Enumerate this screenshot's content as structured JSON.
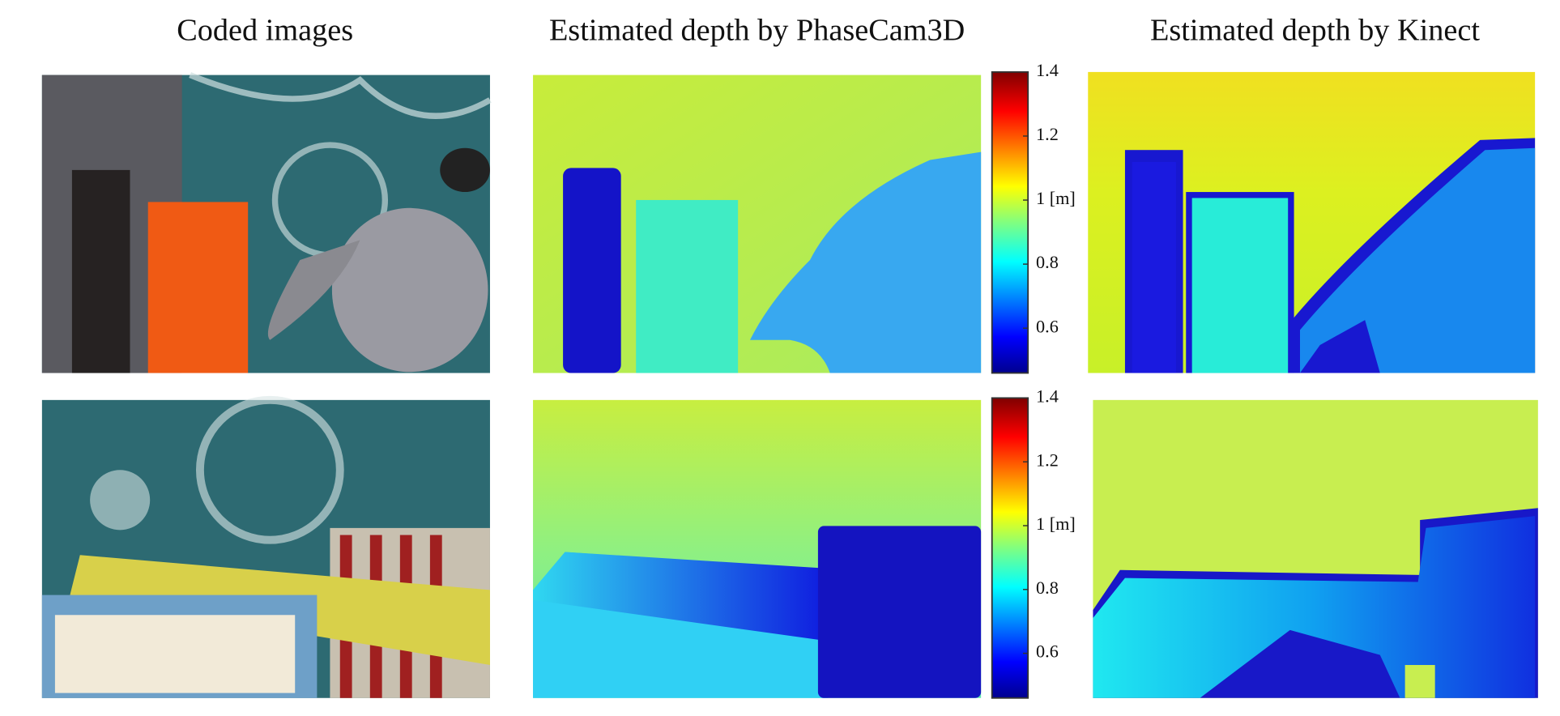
{
  "titles": [
    "Coded images",
    "Estimated depth by PhaseCam3D",
    "Estimated depth by Kinect"
  ],
  "colorbars": [
    {
      "ylim": [
        0.46,
        1.4
      ],
      "yticks": [
        1.4,
        1.2,
        {
          "value": 1,
          "label": "1 [m]"
        },
        0.8,
        0.6
      ]
    },
    {
      "ylim": [
        0.46,
        1.4
      ],
      "yticks": [
        1.4,
        1.2,
        {
          "value": 1,
          "label": "1 [m]"
        },
        0.8,
        0.6
      ]
    }
  ]
}
